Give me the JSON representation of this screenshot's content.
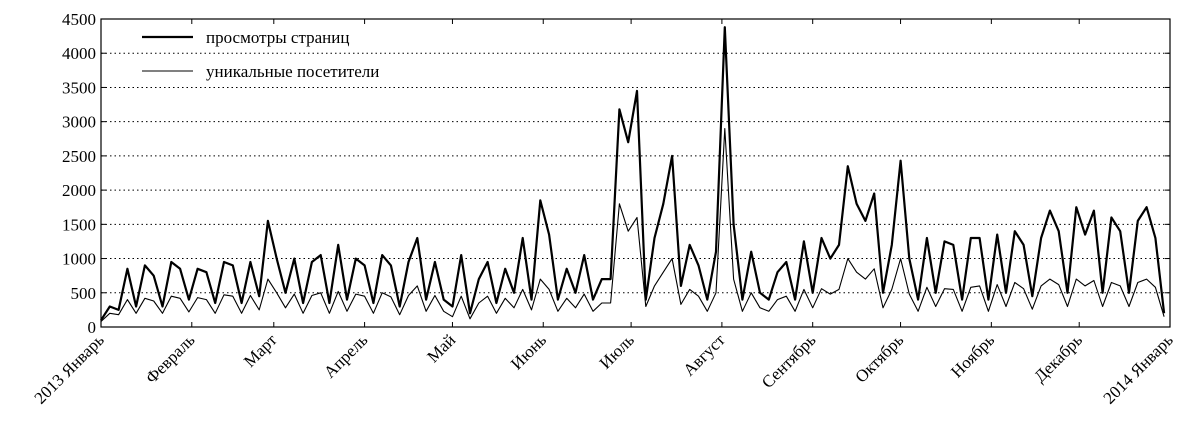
{
  "chart_data": {
    "type": "line",
    "x": [
      0,
      3,
      6,
      9,
      12,
      15,
      18,
      21,
      24,
      27,
      30,
      33,
      36,
      39,
      42,
      45,
      48,
      51,
      54,
      57,
      60,
      63,
      66,
      69,
      72,
      75,
      78,
      81,
      84,
      87,
      90,
      93,
      96,
      99,
      102,
      105,
      108,
      111,
      114,
      117,
      120,
      123,
      126,
      129,
      132,
      135,
      138,
      141,
      144,
      147,
      150,
      153,
      156,
      159,
      162,
      165,
      168,
      171,
      174,
      177,
      180,
      183,
      186,
      189,
      192,
      195,
      198,
      201,
      204,
      207,
      210,
      213,
      216,
      219,
      222,
      225,
      228,
      231,
      234,
      237,
      240,
      243,
      246,
      249,
      252,
      255,
      258,
      261,
      264,
      267,
      270,
      273,
      276,
      279,
      282,
      285,
      288,
      291,
      294,
      297,
      300,
      303,
      306,
      309,
      312,
      315,
      318,
      321,
      324,
      327,
      330,
      333,
      336,
      339,
      342,
      345,
      348,
      351,
      354,
      357,
      360,
      363
    ],
    "series": [
      {
        "name": "просмотры страниц",
        "color": "#000000",
        "width": 2.2,
        "values": [
          100,
          300,
          250,
          850,
          300,
          900,
          750,
          300,
          950,
          850,
          400,
          850,
          800,
          350,
          950,
          900,
          350,
          950,
          450,
          1550,
          1000,
          500,
          1000,
          350,
          950,
          1050,
          350,
          1200,
          400,
          1000,
          900,
          350,
          1050,
          900,
          300,
          950,
          1300,
          400,
          950,
          400,
          300,
          1050,
          200,
          700,
          950,
          350,
          850,
          500,
          1300,
          400,
          1850,
          1350,
          400,
          850,
          500,
          1050,
          400,
          700,
          700,
          3180,
          2700,
          3450,
          400,
          1300,
          1800,
          2500,
          600,
          1200,
          900,
          400,
          1100,
          4380,
          1500,
          400,
          1100,
          500,
          400,
          800,
          950,
          400,
          1250,
          500,
          1300,
          1000,
          1200,
          2350,
          1800,
          1550,
          1950,
          500,
          1200,
          2430,
          1000,
          400,
          1300,
          500,
          1250,
          1200,
          400,
          1300,
          1300,
          400,
          1350,
          500,
          1400,
          1200,
          450,
          1300,
          1700,
          1400,
          500,
          1750,
          1350,
          1700,
          500,
          1600,
          1400,
          500,
          1550,
          1750,
          1300,
          200
        ]
      },
      {
        "name": "уникальные посетители",
        "color": "#000000",
        "width": 1.1,
        "values": [
          80,
          200,
          180,
          400,
          200,
          420,
          380,
          200,
          450,
          420,
          220,
          430,
          400,
          200,
          470,
          450,
          200,
          460,
          250,
          700,
          500,
          280,
          480,
          200,
          460,
          500,
          200,
          520,
          230,
          480,
          450,
          200,
          500,
          440,
          180,
          460,
          600,
          230,
          460,
          230,
          150,
          450,
          120,
          350,
          450,
          200,
          420,
          280,
          550,
          250,
          700,
          550,
          230,
          420,
          280,
          480,
          230,
          350,
          350,
          1800,
          1400,
          1600,
          300,
          600,
          800,
          1000,
          330,
          550,
          450,
          230,
          500,
          2900,
          700,
          230,
          500,
          280,
          230,
          400,
          450,
          230,
          550,
          280,
          560,
          480,
          550,
          1000,
          800,
          700,
          850,
          280,
          550,
          1000,
          480,
          230,
          580,
          300,
          560,
          550,
          230,
          580,
          600,
          230,
          620,
          300,
          650,
          560,
          260,
          600,
          700,
          620,
          300,
          700,
          600,
          680,
          300,
          650,
          600,
          300,
          650,
          700,
          580,
          150
        ]
      }
    ],
    "xlim": [
      0,
      365
    ],
    "xticks": [
      {
        "value": 0,
        "label": "2013 Январь"
      },
      {
        "value": 31,
        "label": "Февраль"
      },
      {
        "value": 59,
        "label": "Март"
      },
      {
        "value": 90,
        "label": "Апрель"
      },
      {
        "value": 120,
        "label": "Май"
      },
      {
        "value": 151,
        "label": "Июнь"
      },
      {
        "value": 181,
        "label": "Июль"
      },
      {
        "value": 212,
        "label": "Август"
      },
      {
        "value": 243,
        "label": "Сентябрь"
      },
      {
        "value": 273,
        "label": "Октябрь"
      },
      {
        "value": 304,
        "label": "Ноябрь"
      },
      {
        "value": 334,
        "label": "Декабрь"
      },
      {
        "value": 365,
        "label": "2014 Январь"
      }
    ],
    "ylim": [
      0,
      4500
    ],
    "yticks": [
      0,
      500,
      1000,
      1500,
      2000,
      2500,
      3000,
      3500,
      4000,
      4500
    ],
    "grid": true,
    "legend": "upper left"
  }
}
